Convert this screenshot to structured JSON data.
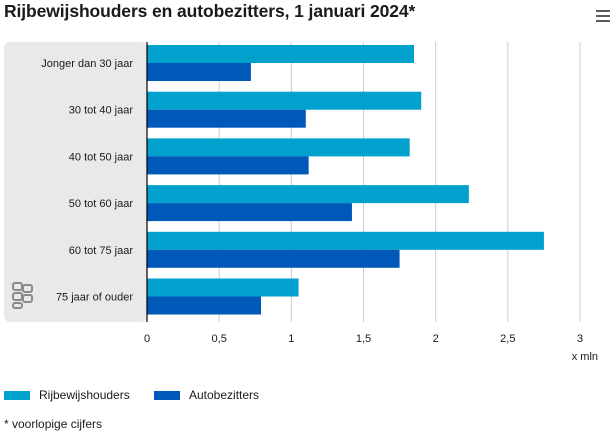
{
  "title": "Rijbewijshouders en autobezitters, 1 januari 2024*",
  "menu_icon": "hamburger-menu-icon",
  "footnote": "* voorlopige cijfers",
  "colors": {
    "rijbewijshouders": "#00a1cd",
    "autobezitters": "#0058b8",
    "plot_band": "#e9e9e9",
    "axis": "#000000",
    "grid": "#cccccc"
  },
  "chart_data": {
    "type": "bar",
    "orientation": "horizontal",
    "title": "Rijbewijshouders en autobezitters, 1 januari 2024*",
    "xlabel": "x mln",
    "ylabel": "",
    "xlim": [
      0,
      3
    ],
    "xticks": [
      {
        "value": 0,
        "label": "0"
      },
      {
        "value": 0.5,
        "label": "0,5"
      },
      {
        "value": 1,
        "label": "1"
      },
      {
        "value": 1.5,
        "label": "1,5"
      },
      {
        "value": 2,
        "label": "2"
      },
      {
        "value": 2.5,
        "label": "2,5"
      },
      {
        "value": 3,
        "label": "3"
      }
    ],
    "grid": true,
    "legend_position": "bottom-left",
    "categories": [
      "Jonger dan 30 jaar",
      "30 tot 40 jaar",
      "40 tot 50 jaar",
      "50 tot 60 jaar",
      "60 tot 75 jaar",
      "75 jaar of ouder"
    ],
    "series": [
      {
        "name": "Rijbewijshouders",
        "color": "#00a1cd",
        "values": [
          1.85,
          1.9,
          1.82,
          2.23,
          2.75,
          1.05
        ]
      },
      {
        "name": "Autobezitters",
        "color": "#0058b8",
        "values": [
          0.72,
          1.1,
          1.12,
          1.42,
          1.75,
          0.79
        ]
      }
    ],
    "logo_icon": "cbs-logo-icon"
  }
}
